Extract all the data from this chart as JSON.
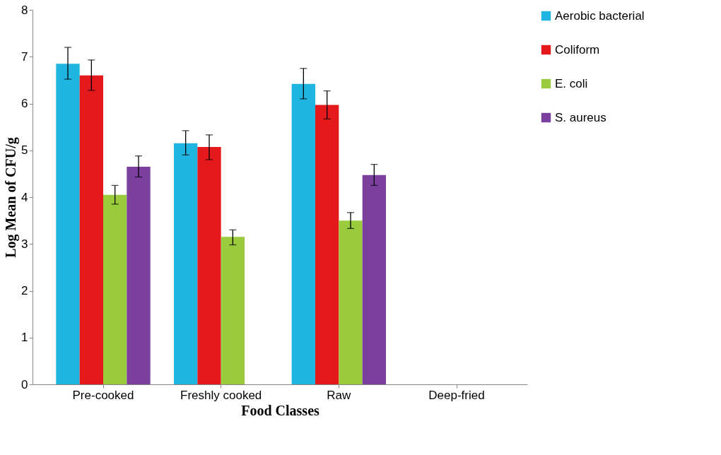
{
  "chart_data": {
    "type": "bar",
    "xlabel": "Food Classes",
    "ylabel": "Log Mean of CFU/g",
    "categories": [
      "Pre-cooked",
      "Freshly cooked",
      "Raw",
      "Deep-fried"
    ],
    "series": [
      {
        "name": "Aerobic bacterial",
        "color": "#1fb5e0",
        "values": [
          6.85,
          5.15,
          6.42,
          0
        ],
        "errors": [
          [
            6.52,
            7.2
          ],
          [
            4.9,
            5.42
          ],
          [
            6.1,
            6.75
          ],
          null
        ]
      },
      {
        "name": "Coliform",
        "color": "#e3191c",
        "values": [
          6.6,
          5.07,
          5.97,
          0
        ],
        "errors": [
          [
            6.28,
            6.93
          ],
          [
            4.8,
            5.33
          ],
          [
            5.67,
            6.27
          ],
          null
        ]
      },
      {
        "name": "E. coli",
        "color": "#9acb3c",
        "values": [
          4.05,
          3.15,
          3.5,
          0
        ],
        "errors": [
          [
            3.85,
            4.25
          ],
          [
            2.98,
            3.3
          ],
          [
            3.33,
            3.67
          ],
          null
        ]
      },
      {
        "name": "S. aureus",
        "color": "#7b3f9e",
        "values": [
          4.65,
          0,
          4.47,
          0
        ],
        "errors": [
          [
            4.43,
            4.88
          ],
          null,
          [
            4.25,
            4.7
          ],
          null
        ]
      }
    ],
    "ylim": [
      0,
      8
    ],
    "yticks": [
      0,
      1,
      2,
      3,
      4,
      5,
      6,
      7,
      8
    ],
    "grid": false,
    "legend": "right"
  }
}
